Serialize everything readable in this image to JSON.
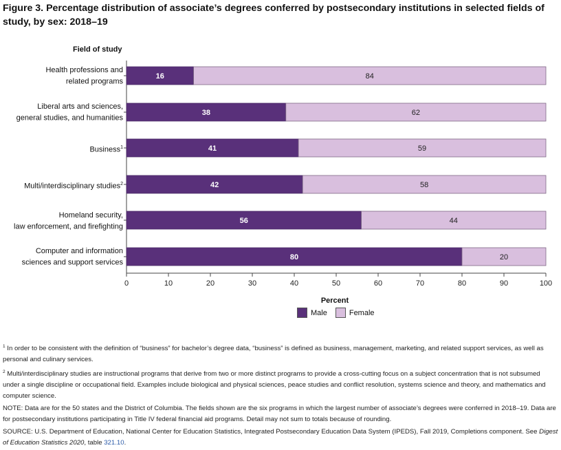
{
  "title": "Figure 3. Percentage distribution of associate’s degrees conferred by postsecondary institutions in selected fields of study, by sex: 2018–19",
  "field_header": "Field of study",
  "colors": {
    "male": "#59307a",
    "female": "#d9bfde",
    "bar_stroke": "#4a2a66",
    "axis": "#444444"
  },
  "categories": [
    {
      "line1": "Health professions and",
      "line2": "related programs",
      "sup": ""
    },
    {
      "line1": "Liberal arts and sciences,",
      "line2": "general studies, and humanities",
      "sup": ""
    },
    {
      "line1": "",
      "line2": "Business",
      "sup": "1"
    },
    {
      "line1": "",
      "line2": "Multi/interdisciplinary studies",
      "sup": "2"
    },
    {
      "line1": "Homeland security,",
      "line2": "law enforcement, and firefighting",
      "sup": ""
    },
    {
      "line1": "Computer and information",
      "line2": "sciences and support services",
      "sup": ""
    }
  ],
  "chart_data": {
    "type": "bar",
    "orientation": "horizontal",
    "stacked": true,
    "title": "Figure 3. Percentage distribution of associate’s degrees conferred by postsecondary institutions in selected fields of study, by sex: 2018–19",
    "categories": [
      "Health professions and related programs",
      "Liberal arts and sciences, general studies, and humanities",
      "Business",
      "Multi/interdisciplinary studies",
      "Homeland security, law enforcement, and firefighting",
      "Computer and information sciences and support services"
    ],
    "series": [
      {
        "name": "Male",
        "values": [
          16,
          38,
          41,
          42,
          56,
          80
        ]
      },
      {
        "name": "Female",
        "values": [
          84,
          62,
          59,
          58,
          44,
          20
        ]
      }
    ],
    "xlabel": "Percent",
    "ylabel": "Field of study",
    "xlim": [
      0,
      100
    ],
    "xticks": [
      "0",
      "10",
      "20",
      "30",
      "40",
      "50",
      "60",
      "70",
      "80",
      "90",
      "100"
    ],
    "legend_position": "bottom"
  },
  "legend": {
    "male": "Male",
    "female": "Female"
  },
  "notes": {
    "fn1_num": "1",
    "fn1": "In order to be consistent with the definition of “business” for bachelor’s degree data, “business” is defined as business, management, marketing, and related support services, as well as personal and culinary services.",
    "fn2_num": "2",
    "fn2": "Multi/interdisciplinary studies are instructional programs that derive from two or more distinct programs to provide a cross-cutting focus on a subject concentration that is not subsumed under a single discipline or occupational field. Examples include biological and physical sciences, peace studies and conflict resolution, systems science and theory, and mathematics and computer science.",
    "note": "NOTE: Data are for the 50 states and the District of Columbia. The fields shown are the six programs in which the largest number of associate’s degrees were conferred in 2018–19. Data are for postsecondary institutions participating in Title IV federal financial aid programs. Detail may not sum to totals because of rounding.",
    "source_a": "SOURCE: U.S. Department of Education, National Center for Education Statistics, Integrated Postsecondary Education Data System (IPEDS), Fall 2019, Completions component. See ",
    "source_digest": "Digest of Education Statistics 2020",
    "source_b": ", table ",
    "source_table": "321.10",
    "source_end": "."
  }
}
